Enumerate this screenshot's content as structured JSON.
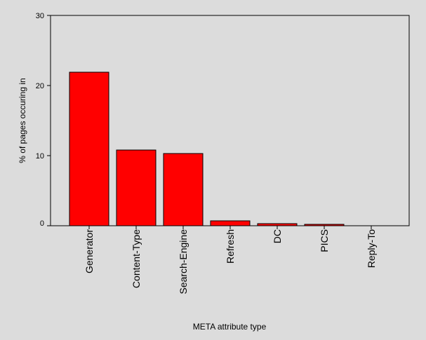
{
  "chart_data": {
    "type": "bar",
    "title": "",
    "xlabel": "META attribute type",
    "ylabel": "% of pages occuring in",
    "categories": [
      "Generator",
      "Content-Type",
      "Search-Engine",
      "Refresh",
      "DC",
      "PICS",
      "Reply-To"
    ],
    "values": [
      21.9,
      10.8,
      10.3,
      0.7,
      0.3,
      0.2,
      0.0
    ],
    "ylim": [
      0,
      30
    ],
    "yticks": [
      0,
      10,
      20,
      30
    ],
    "ytick_labels": [
      "0",
      "10",
      "20",
      "30"
    ],
    "grid": false,
    "legend": "none",
    "colors": {
      "bar": "#ff0000",
      "bar_edge": "#000000",
      "plot_background": "#dcdcdc",
      "axis": "#000000"
    }
  }
}
